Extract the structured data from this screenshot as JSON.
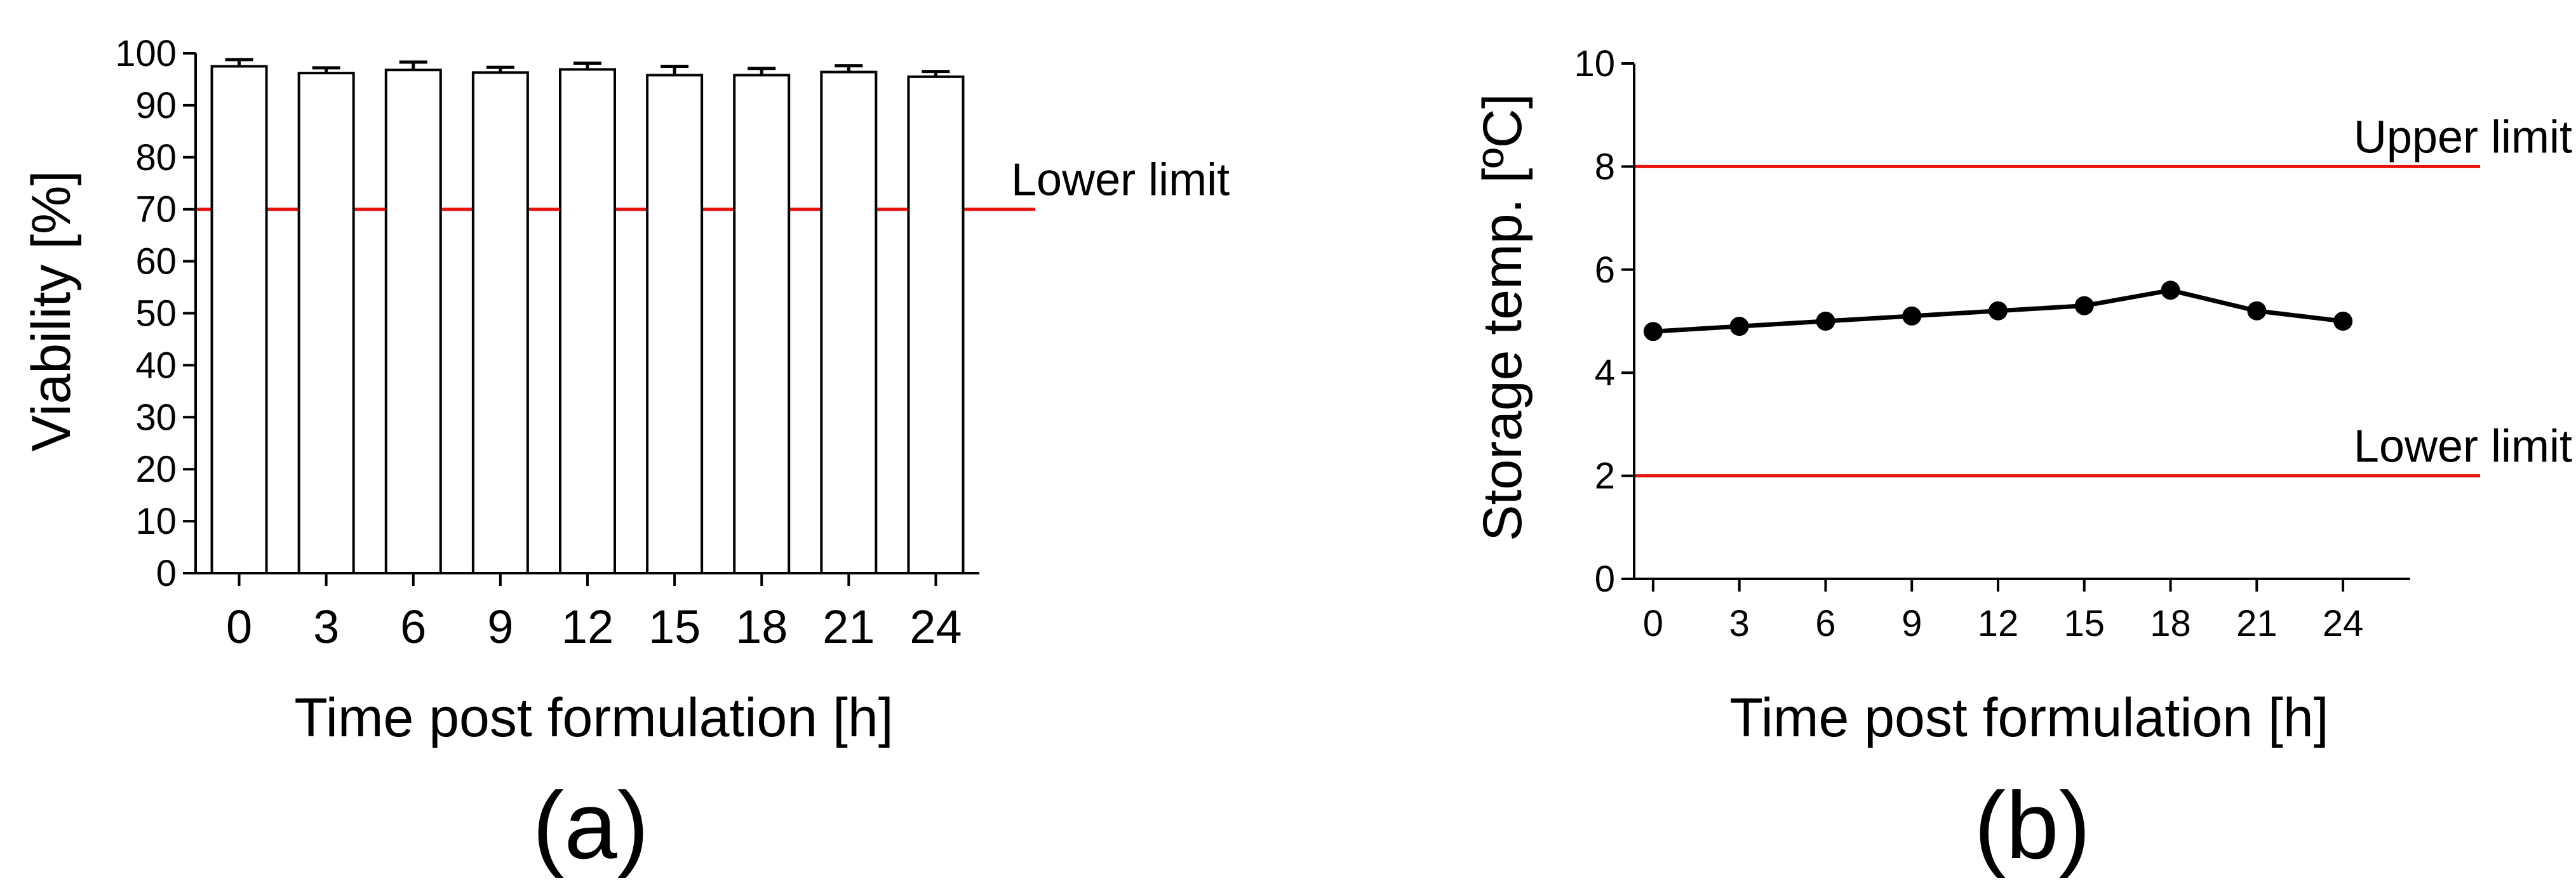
{
  "chart_data": [
    {
      "type": "bar",
      "panel_label": "(a)",
      "xlabel": "Time post formulation  [h]",
      "ylabel": "Viability [%]",
      "categories": [
        "0",
        "3",
        "6",
        "9",
        "12",
        "15",
        "18",
        "21",
        "24"
      ],
      "values": [
        97.5,
        96.2,
        96.8,
        96.3,
        96.9,
        95.8,
        95.8,
        96.4,
        95.5
      ],
      "error": [
        1.3,
        1.0,
        1.5,
        1.0,
        1.2,
        1.7,
        1.3,
        1.2,
        1.0
      ],
      "ylim": [
        0,
        100
      ],
      "yticks": [
        "0",
        "10",
        "20",
        "30",
        "40",
        "50",
        "60",
        "70",
        "80",
        "90",
        "100"
      ],
      "reference_lines": [
        {
          "label": "Lower limit",
          "value": 70,
          "color": "#e8120c"
        }
      ],
      "bar_fill": "#ffffff",
      "bar_edge": "#000000",
      "grid": false
    },
    {
      "type": "line",
      "panel_label": "(b)",
      "xlabel": "Time post formulation [h]",
      "ylabel": "Storage temp.  [ºC]",
      "x": [
        "0",
        "3",
        "6",
        "9",
        "12",
        "15",
        "18",
        "21",
        "24"
      ],
      "values": [
        4.8,
        4.9,
        5.0,
        5.1,
        5.2,
        5.3,
        5.6,
        5.2,
        5.0
      ],
      "ylim": [
        0,
        10
      ],
      "yticks": [
        "0",
        "2",
        "4",
        "6",
        "8",
        "10"
      ],
      "reference_lines": [
        {
          "label": "Upper limit",
          "value": 8,
          "color": "#e8120c"
        },
        {
          "label": "Lower limit",
          "value": 2,
          "color": "#e8120c"
        }
      ],
      "line_color": "#000000",
      "marker": "filled-circle",
      "grid": false
    }
  ]
}
